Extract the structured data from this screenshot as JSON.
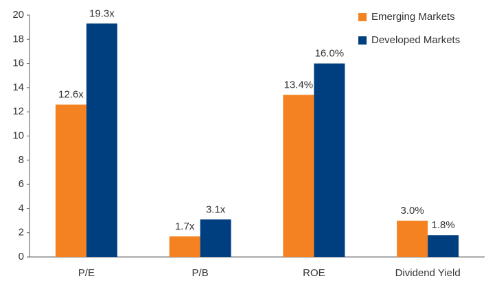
{
  "chart_data": {
    "type": "bar",
    "categories": [
      "P/E",
      "P/B",
      "ROE",
      "Dividend Yield"
    ],
    "series": [
      {
        "name": "Emerging Markets",
        "color": "#f58220",
        "values": [
          12.6,
          1.7,
          13.4,
          3.0
        ],
        "value_labels": [
          "12.6x",
          "1.7x",
          "13.4%",
          "3.0%"
        ]
      },
      {
        "name": "Developed Markets",
        "color": "#003f7f",
        "values": [
          19.3,
          3.1,
          16.0,
          1.8
        ],
        "value_labels": [
          "19.3x",
          "3.1x",
          "16.0%",
          "1.8%"
        ]
      }
    ],
    "ylim": [
      0,
      20
    ],
    "yticks": [
      0,
      2,
      4,
      6,
      8,
      10,
      12,
      14,
      16,
      18,
      20
    ],
    "grid": false,
    "legend": "top-right"
  }
}
